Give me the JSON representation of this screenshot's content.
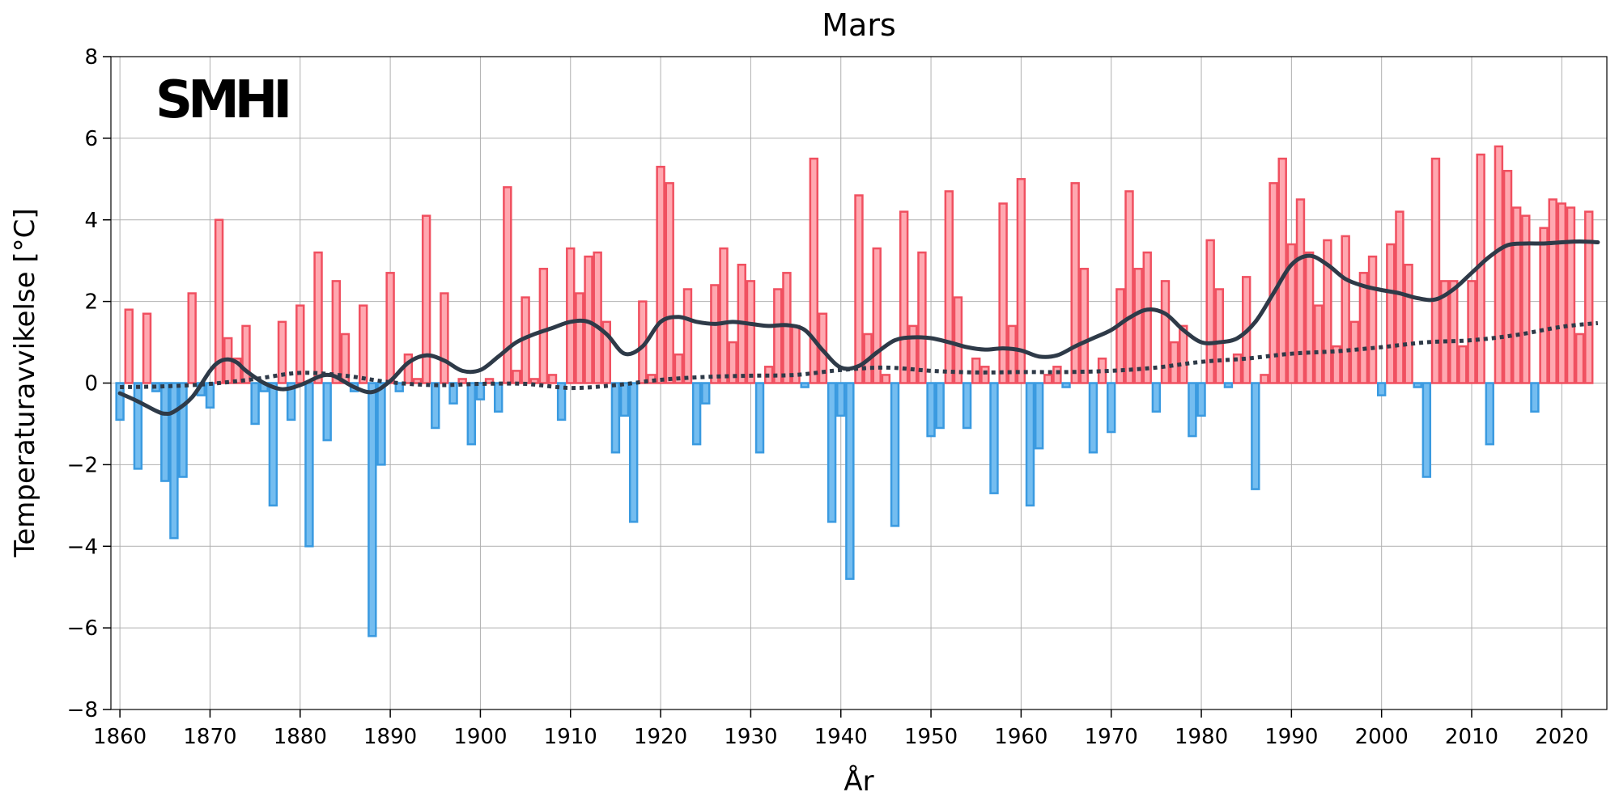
{
  "logo": {
    "text": "SMHI"
  },
  "chart_data": {
    "type": "bar",
    "title": "Mars",
    "xlabel": "År",
    "ylabel": "Temperaturavvikelse [°C]",
    "xlim": [
      1859,
      2025
    ],
    "ylim": [
      -8,
      8
    ],
    "xticks": [
      1860,
      1870,
      1880,
      1890,
      1900,
      1910,
      1920,
      1930,
      1940,
      1950,
      1960,
      1970,
      1980,
      1990,
      2000,
      2010,
      2020
    ],
    "yticks": [
      -8,
      -6,
      -4,
      -2,
      0,
      2,
      4,
      6,
      8
    ],
    "ytick_labels": [
      "−8",
      "−6",
      "−4",
      "−2",
      "0",
      "2",
      "4",
      "6",
      "8"
    ],
    "grid": true,
    "colors": {
      "positive_fill": "#ffa8b0",
      "positive_edge": "#f05060",
      "negative_fill": "#74bdf0",
      "negative_edge": "#3a9ae0",
      "smooth_line": "#2e3a48",
      "trend_line": "#2e3a48"
    },
    "start_year": 1860,
    "values": [
      -0.9,
      1.8,
      -2.1,
      1.7,
      -0.2,
      -2.4,
      -3.8,
      -2.3,
      2.2,
      -0.3,
      -0.6,
      4.0,
      1.1,
      0.6,
      1.4,
      -1.0,
      -0.2,
      -3.0,
      1.5,
      -0.9,
      1.9,
      -4.0,
      3.2,
      -1.4,
      2.5,
      1.2,
      -0.2,
      1.9,
      -6.2,
      -2.0,
      2.7,
      -0.2,
      0.7,
      0.1,
      4.1,
      -1.1,
      2.2,
      -0.5,
      0.1,
      -1.5,
      -0.4,
      0.1,
      -0.7,
      4.8,
      0.3,
      2.1,
      0.1,
      2.8,
      0.2,
      -0.9,
      3.3,
      2.2,
      3.1,
      3.2,
      1.5,
      -1.7,
      -0.8,
      -3.4,
      2.0,
      0.2,
      5.3,
      4.9,
      0.7,
      2.3,
      -1.5,
      -0.5,
      2.4,
      3.3,
      1.0,
      2.9,
      2.5,
      -1.7,
      0.4,
      2.3,
      2.7,
      1.4,
      -0.1,
      5.5,
      1.7,
      -3.4,
      -0.8,
      -4.8,
      4.6,
      1.2,
      3.3,
      0.2,
      -3.5,
      4.2,
      1.4,
      3.2,
      -1.3,
      -1.1,
      4.7,
      2.1,
      -1.1,
      0.6,
      0.4,
      -2.7,
      4.4,
      1.4,
      5.0,
      -3.0,
      -1.6,
      0.2,
      0.4,
      -0.1,
      4.9,
      2.8,
      -1.7,
      0.6,
      -1.2,
      2.3,
      4.7,
      2.8,
      3.2,
      -0.7,
      2.5,
      1.0,
      1.4,
      -1.3,
      -0.8,
      3.5,
      2.3,
      -0.1,
      0.7,
      2.6,
      -2.6,
      0.2,
      4.9,
      5.5,
      3.4,
      4.5,
      3.2,
      1.9,
      3.5,
      0.9,
      3.6,
      1.5,
      2.7,
      3.1,
      -0.3,
      3.4,
      4.2,
      2.9,
      -0.1,
      -2.3,
      5.5,
      2.5,
      2.5,
      0.9,
      2.5,
      5.6,
      -1.5,
      5.8,
      5.2,
      4.3,
      4.1,
      -0.7,
      3.8,
      4.5,
      4.4,
      4.3,
      1.2,
      4.2
    ],
    "smooth_series": {
      "x": [
        1860,
        1862,
        1864,
        1865,
        1866,
        1868,
        1870,
        1871,
        1872,
        1873,
        1874,
        1876,
        1878,
        1880,
        1882,
        1883,
        1884,
        1886,
        1888,
        1890,
        1892,
        1894,
        1896,
        1898,
        1900,
        1902,
        1904,
        1906,
        1908,
        1910,
        1912,
        1914,
        1916,
        1918,
        1920,
        1922,
        1924,
        1926,
        1928,
        1930,
        1932,
        1934,
        1936,
        1938,
        1940,
        1942,
        1944,
        1946,
        1948,
        1950,
        1952,
        1954,
        1956,
        1958,
        1960,
        1962,
        1964,
        1966,
        1968,
        1970,
        1972,
        1974,
        1976,
        1978,
        1980,
        1982,
        1984,
        1986,
        1988,
        1990,
        1992,
        1994,
        1996,
        1998,
        2000,
        2002,
        2004,
        2006,
        2008,
        2010,
        2012,
        2014,
        2016,
        2018,
        2020,
        2022,
        2024
      ],
      "y": [
        -0.25,
        -0.45,
        -0.68,
        -0.75,
        -0.7,
        -0.35,
        0.3,
        0.52,
        0.58,
        0.5,
        0.3,
        0.0,
        -0.15,
        -0.05,
        0.15,
        0.2,
        0.15,
        -0.1,
        -0.22,
        0.05,
        0.5,
        0.68,
        0.55,
        0.3,
        0.32,
        0.65,
        1.0,
        1.2,
        1.35,
        1.5,
        1.5,
        1.2,
        0.72,
        0.9,
        1.5,
        1.62,
        1.5,
        1.45,
        1.5,
        1.45,
        1.4,
        1.42,
        1.3,
        0.8,
        0.38,
        0.42,
        0.75,
        1.05,
        1.12,
        1.1,
        1.0,
        0.88,
        0.82,
        0.85,
        0.8,
        0.65,
        0.68,
        0.9,
        1.1,
        1.3,
        1.6,
        1.8,
        1.7,
        1.3,
        1.0,
        1.0,
        1.1,
        1.5,
        2.2,
        2.9,
        3.12,
        2.9,
        2.55,
        2.38,
        2.28,
        2.2,
        2.08,
        2.05,
        2.3,
        2.7,
        3.1,
        3.38,
        3.42,
        3.42,
        3.45,
        3.47,
        3.45
      ]
    },
    "trend_series": {
      "x": [
        1860,
        1865,
        1870,
        1875,
        1880,
        1885,
        1890,
        1895,
        1900,
        1905,
        1910,
        1915,
        1920,
        1925,
        1930,
        1935,
        1940,
        1945,
        1950,
        1955,
        1960,
        1965,
        1970,
        1975,
        1980,
        1985,
        1990,
        1995,
        2000,
        2005,
        2010,
        2015,
        2020,
        2024
      ],
      "y": [
        -0.1,
        -0.08,
        -0.02,
        0.1,
        0.25,
        0.18,
        0.02,
        -0.05,
        -0.02,
        -0.02,
        -0.12,
        -0.05,
        0.08,
        0.15,
        0.18,
        0.2,
        0.32,
        0.38,
        0.3,
        0.26,
        0.27,
        0.27,
        0.3,
        0.38,
        0.52,
        0.6,
        0.72,
        0.78,
        0.88,
        1.0,
        1.05,
        1.18,
        1.38,
        1.47
      ]
    }
  }
}
